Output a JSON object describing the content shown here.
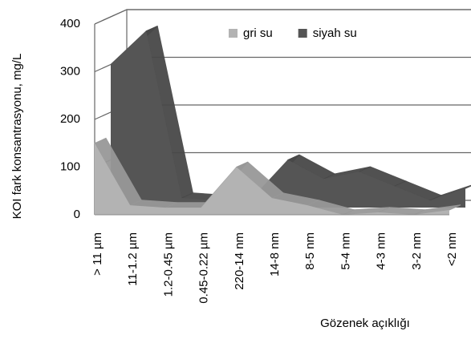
{
  "chart_data": {
    "type": "area3d",
    "y_label": "KOI fark konsantrasyonu, mg/L",
    "x_label": "Gözenek açıklığı",
    "categories": [
      "> 11 µm",
      "11-1.2 µm",
      "1.2-0.45 µm",
      "0.45-0.22 µm",
      "220-14 nm",
      "14-8 nm",
      "8-5 nm",
      "5-4 nm",
      "4-3 nm",
      "3-2 nm",
      "<2 nm"
    ],
    "series": [
      {
        "name": "gri su",
        "color": "#b3b3b3",
        "values": [
          150,
          20,
          15,
          15,
          100,
          35,
          20,
          0,
          5,
          0,
          10
        ]
      },
      {
        "name": "siyah su",
        "color": "#555555",
        "values": [
          300,
          370,
          20,
          15,
          20,
          100,
          60,
          75,
          45,
          15,
          40
        ]
      }
    ],
    "ylim": [
      0,
      400
    ],
    "yticks": [
      0,
      100,
      200,
      300,
      400
    ],
    "grid": true
  }
}
